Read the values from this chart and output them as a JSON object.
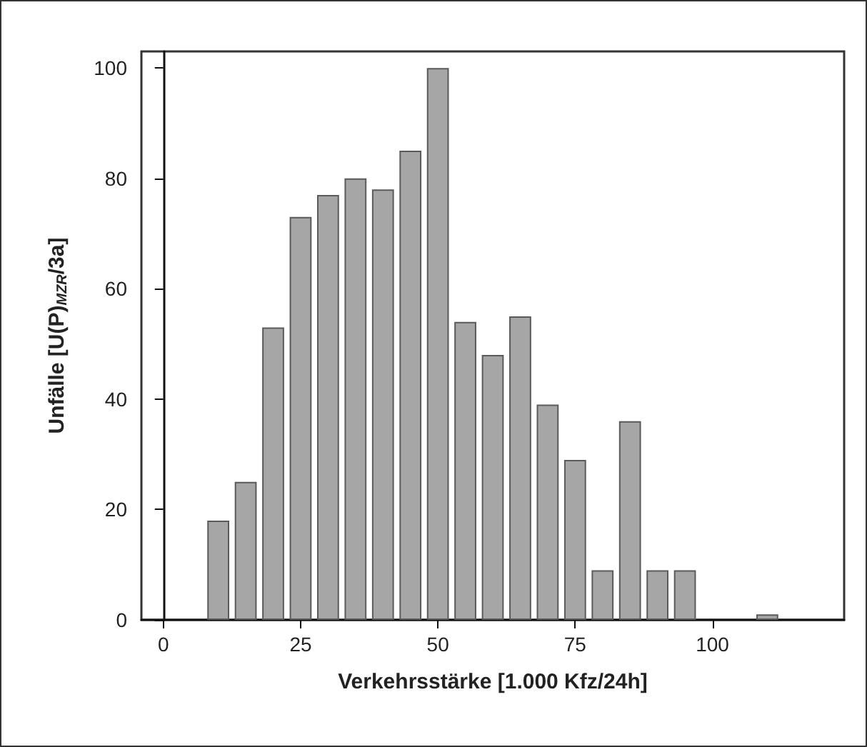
{
  "chart_data": {
    "type": "bar",
    "xlabel": "Verkehrsstärke [1.000 Kfz/24h]",
    "ylabel": "Unfälle [U(P)$_{MZR}$/3a]",
    "x": [
      10,
      15,
      20,
      25,
      30,
      35,
      40,
      45,
      50,
      55,
      60,
      65,
      70,
      75,
      80,
      85,
      90,
      95,
      110
    ],
    "values": [
      18,
      25,
      53,
      73,
      77,
      80,
      78,
      85,
      100,
      54,
      48,
      55,
      39,
      29,
      9,
      36,
      9,
      9,
      1
    ],
    "color": "#a6a6a6",
    "xlim": [
      -4,
      124
    ],
    "xticks": [
      0,
      25,
      50,
      75,
      100
    ],
    "ylim": [
      0,
      103
    ],
    "yticks": [
      0,
      20,
      40,
      60,
      80,
      100
    ]
  }
}
